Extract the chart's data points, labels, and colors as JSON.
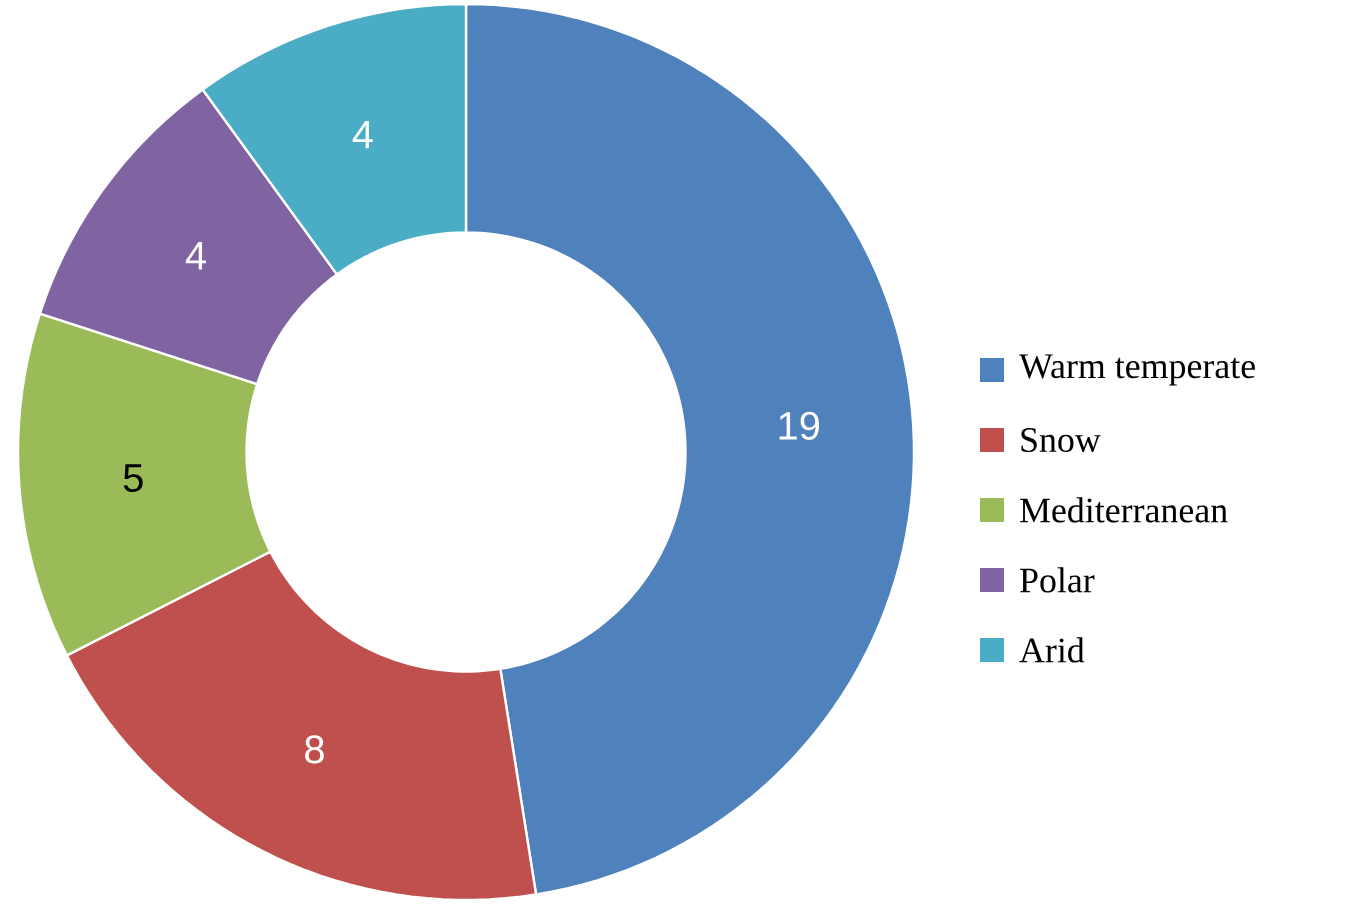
{
  "chart_data": {
    "type": "donut",
    "categories": [
      "Warm temperate",
      "Snow",
      "Mediterranean",
      "Polar",
      "Arid"
    ],
    "values": [
      19,
      8,
      5,
      4,
      4
    ],
    "colors": [
      "#4f81bd",
      "#c0504d",
      "#9bbb59",
      "#8064a2",
      "#4bacc6"
    ],
    "data_labels": true,
    "legend": "right"
  }
}
